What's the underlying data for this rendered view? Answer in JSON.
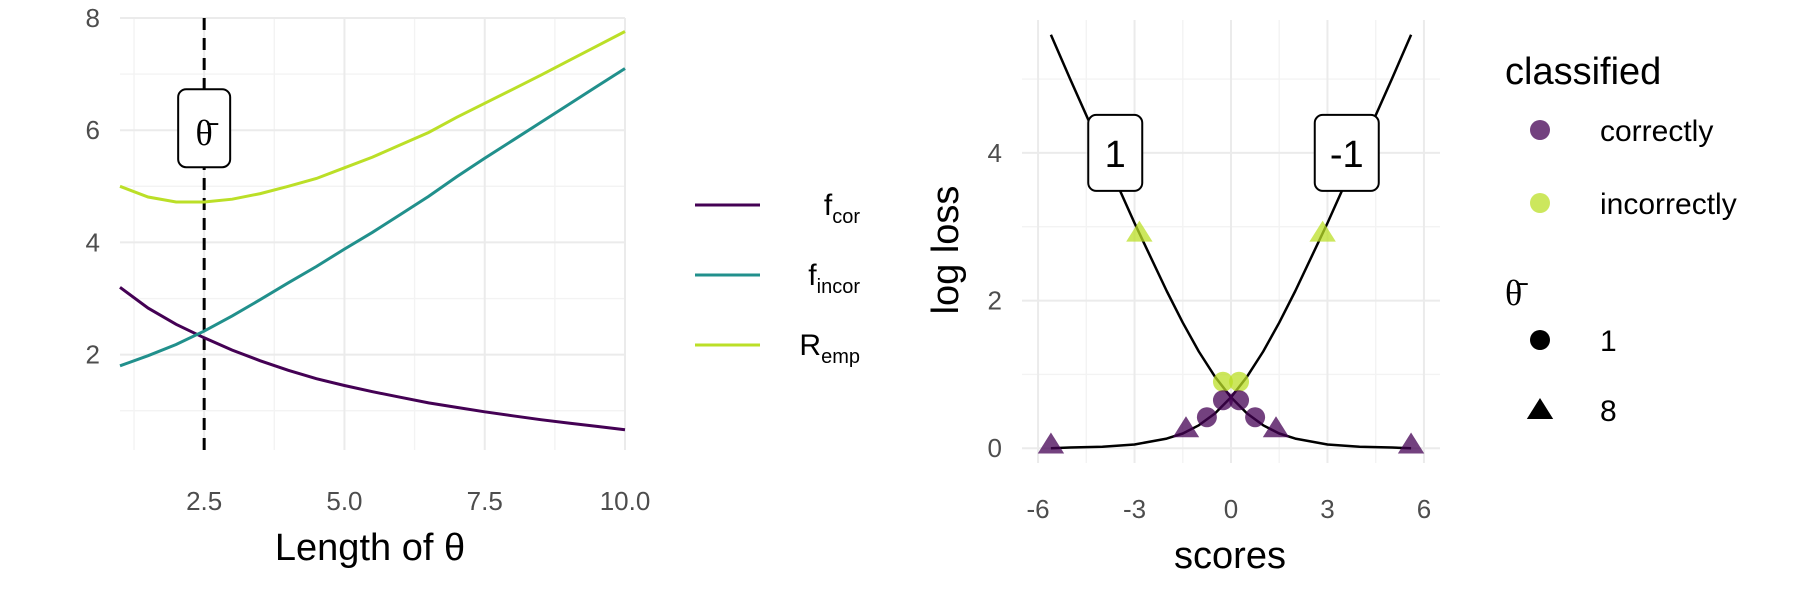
{
  "colors": {
    "f_cor": "#440154",
    "f_incor": "#21908C",
    "R_emp": "#BBDF27",
    "correctly": "#440154",
    "incorrectly": "#BBDF27",
    "curve": "#000000",
    "dashed": "#000000",
    "grid": "#EBEBEB"
  },
  "chart_data": [
    {
      "type": "line",
      "title": "",
      "xlabel": "Length of θ",
      "ylabel": "",
      "xlim": [
        1,
        10
      ],
      "ylim": [
        0.3,
        8
      ],
      "x_ticks": [
        "2.5",
        "5.0",
        "7.5",
        "10.0"
      ],
      "y_ticks": [
        "2",
        "4",
        "6",
        "8"
      ],
      "grid": true,
      "vline": {
        "x": 2.5,
        "style": "dashed",
        "label": "θ̄",
        "label_y": 6
      },
      "legend": {
        "position": "right",
        "entries": [
          {
            "main": "f",
            "sub": "cor"
          },
          {
            "main": "f",
            "sub": "incor"
          },
          {
            "main": "R",
            "sub": "emp"
          }
        ]
      },
      "x": [
        1,
        1.5,
        2,
        2.5,
        3,
        3.5,
        4,
        4.5,
        5,
        5.5,
        6,
        6.5,
        7,
        7.5,
        8,
        8.5,
        9,
        9.5,
        10
      ],
      "series": [
        {
          "name": "f_cor",
          "values": [
            3.2,
            2.83,
            2.54,
            2.3,
            2.08,
            1.89,
            1.72,
            1.57,
            1.45,
            1.34,
            1.24,
            1.14,
            1.06,
            0.98,
            0.91,
            0.84,
            0.78,
            0.72,
            0.66
          ]
        },
        {
          "name": "f_incor",
          "values": [
            1.8,
            1.98,
            2.18,
            2.42,
            2.69,
            2.98,
            3.28,
            3.57,
            3.88,
            4.18,
            4.5,
            4.82,
            5.17,
            5.5,
            5.82,
            6.14,
            6.46,
            6.78,
            7.1
          ]
        },
        {
          "name": "R_emp",
          "values": [
            5.0,
            4.81,
            4.72,
            4.72,
            4.77,
            4.87,
            5.0,
            5.14,
            5.33,
            5.52,
            5.74,
            5.96,
            6.23,
            6.48,
            6.73,
            6.98,
            7.24,
            7.5,
            7.76
          ]
        }
      ]
    },
    {
      "type": "scatter",
      "title": "",
      "xlabel": "scores",
      "ylabel": "log loss",
      "xlim": [
        -6.5,
        6.5
      ],
      "ylim": [
        -0.2,
        5.8
      ],
      "x_ticks": [
        "-6",
        "-3",
        "0",
        "3",
        "6"
      ],
      "y_ticks": [
        "0",
        "2",
        "4"
      ],
      "grid": true,
      "curves": [
        {
          "label": "1",
          "points": [
            [
              -5.6,
              5.6
            ],
            [
              -5,
              5.0
            ],
            [
              -4,
              4.02
            ],
            [
              -3,
              3.05
            ],
            [
              -2,
              2.13
            ],
            [
              -1.5,
              1.7
            ],
            [
              -1,
              1.31
            ],
            [
              -0.5,
              0.97
            ],
            [
              0,
              0.69
            ],
            [
              0.5,
              0.47
            ],
            [
              1,
              0.31
            ],
            [
              1.5,
              0.2
            ],
            [
              2,
              0.13
            ],
            [
              3,
              0.05
            ],
            [
              4,
              0.02
            ],
            [
              5,
              0.01
            ],
            [
              5.6,
              0.0
            ]
          ]
        },
        {
          "label": "-1",
          "points": [
            [
              -5.6,
              0.0
            ],
            [
              -5,
              0.01
            ],
            [
              -4,
              0.02
            ],
            [
              -3,
              0.05
            ],
            [
              -2,
              0.13
            ],
            [
              -1.5,
              0.2
            ],
            [
              -1,
              0.31
            ],
            [
              -0.5,
              0.47
            ],
            [
              0,
              0.69
            ],
            [
              0.5,
              0.97
            ],
            [
              1,
              1.31
            ],
            [
              1.5,
              1.7
            ],
            [
              2,
              2.13
            ],
            [
              3,
              3.05
            ],
            [
              4,
              4.02
            ],
            [
              5,
              5.0
            ],
            [
              5.6,
              5.6
            ]
          ]
        }
      ],
      "curve_labels": [
        {
          "text": "1",
          "x": -3.6,
          "y": 4.0
        },
        {
          "text": "-1",
          "x": 3.6,
          "y": 4.0
        }
      ],
      "points": [
        {
          "x": -0.25,
          "y": 0.9,
          "classified": "incorrectly",
          "theta": "1"
        },
        {
          "x": 0.25,
          "y": 0.9,
          "classified": "incorrectly",
          "theta": "1"
        },
        {
          "x": -2.85,
          "y": 2.92,
          "classified": "incorrectly",
          "theta": "8"
        },
        {
          "x": 2.85,
          "y": 2.92,
          "classified": "incorrectly",
          "theta": "8"
        },
        {
          "x": -0.75,
          "y": 0.42,
          "classified": "correctly",
          "theta": "1"
        },
        {
          "x": 0.75,
          "y": 0.42,
          "classified": "correctly",
          "theta": "1"
        },
        {
          "x": -0.25,
          "y": 0.65,
          "classified": "correctly",
          "theta": "1"
        },
        {
          "x": 0.25,
          "y": 0.65,
          "classified": "correctly",
          "theta": "1"
        },
        {
          "x": -1.4,
          "y": 0.27,
          "classified": "correctly",
          "theta": "8"
        },
        {
          "x": 1.4,
          "y": 0.27,
          "classified": "correctly",
          "theta": "8"
        },
        {
          "x": -5.6,
          "y": 0.05,
          "classified": "correctly",
          "theta": "8"
        },
        {
          "x": 5.6,
          "y": 0.05,
          "classified": "correctly",
          "theta": "8"
        }
      ],
      "legend": {
        "position": "right",
        "color": {
          "title": "classified",
          "entries": [
            "correctly",
            "incorrectly"
          ]
        },
        "shape": {
          "title": "θ̄",
          "entries": [
            {
              "label": "1",
              "shape": "circle"
            },
            {
              "label": "8",
              "shape": "triangle"
            }
          ]
        }
      }
    }
  ]
}
